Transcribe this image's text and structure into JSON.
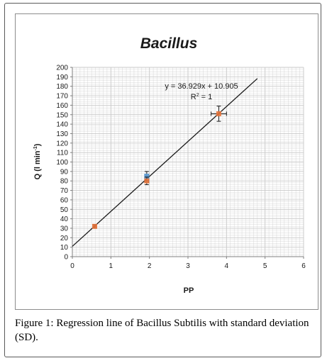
{
  "caption": {
    "label": "Figure 1:",
    "text": " Regression line of Bacillus Subtilis with standard deviation (SD)."
  },
  "chart_data": {
    "type": "scatter",
    "title": "Bacillus",
    "xlabel": "PP",
    "ylabel": "Q (l min",
    "ylabel_superscript": "-1",
    "ylabel_close": ")",
    "xlim": [
      0,
      6
    ],
    "ylim": [
      0,
      200
    ],
    "x_ticks": [
      "0",
      "1",
      "2",
      "3",
      "4",
      "5",
      "6"
    ],
    "y_ticks": [
      "0",
      "10",
      "20",
      "30",
      "40",
      "50",
      "60",
      "70",
      "80",
      "90",
      "100",
      "110",
      "120",
      "130",
      "140",
      "150",
      "160",
      "170",
      "180",
      "190",
      "200"
    ],
    "grid": true,
    "points": [
      {
        "x": 0.58,
        "y": 32,
        "yerr": 2,
        "xerr": 0.03,
        "color": "#e8743b"
      },
      {
        "x": 1.93,
        "y": 85,
        "yerr": 5,
        "xerr": 0.05,
        "color": "#5b9bd5"
      },
      {
        "x": 1.93,
        "y": 80,
        "yerr": 4,
        "xerr": 0.05,
        "color": "#e8743b"
      },
      {
        "x": 3.8,
        "y": 151,
        "yerr": 8,
        "xerr": 0.2,
        "color": "#e8743b"
      }
    ],
    "trendline": {
      "slope": 36.929,
      "intercept": 10.905,
      "x_start": 0,
      "x_end": 4.8
    },
    "equation": "y = 36.929x + 10.905",
    "r2_prefix": "R",
    "r2_superscript": "2",
    "r2_suffix": " = 1",
    "colors": {
      "line": "#1a1a1a",
      "grid": "#c8c8c8",
      "axis": "#7f7f7f",
      "errbar": "#1a1a1a"
    }
  }
}
